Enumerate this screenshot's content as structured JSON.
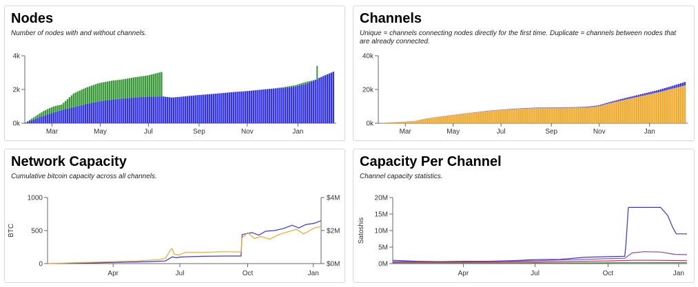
{
  "panels": {
    "nodes": {
      "title": "Nodes",
      "subtitle": "Number of nodes with and without channels."
    },
    "channels": {
      "title": "Channels",
      "subtitle": "Unique = channels connecting nodes directly for the first time. Duplicate = channels between nodes that are already connected."
    },
    "capacity": {
      "title": "Network Capacity",
      "subtitle": "Cumulative bitcoin capacity across all channels."
    },
    "perchannel": {
      "title": "Capacity Per Channel",
      "subtitle": "Channel capacity statistics."
    }
  },
  "colors": {
    "blue": "#3333ee",
    "green": "#3a9a3a",
    "orange": "#f5a623",
    "purple": "#8a4a9a",
    "card_border": "#d7d7d7"
  },
  "chart_data": [
    {
      "id": "nodes",
      "type": "bar",
      "stacked": true,
      "xlabel": "",
      "ylabel": "",
      "x_ticks": [
        "Mar",
        "May",
        "Jul",
        "Sep",
        "Nov",
        "Jan"
      ],
      "y_ticks": [
        "0k",
        "2k",
        "4k"
      ],
      "ylim": [
        0,
        4000
      ],
      "x_domain_months": [
        1.0,
        13.6
      ],
      "x_tick_months": [
        2.1,
        4.05,
        6.0,
        8.05,
        10.0,
        12.05
      ],
      "series": [
        {
          "color": "#3333ee",
          "points": [
            [
              1.0,
              0
            ],
            [
              1.3,
              180
            ],
            [
              1.8,
              450
            ],
            [
              2.5,
              780
            ],
            [
              3.0,
              950
            ],
            [
              3.5,
              1130
            ],
            [
              4.0,
              1290
            ],
            [
              4.5,
              1390
            ],
            [
              5.0,
              1460
            ],
            [
              5.5,
              1530
            ],
            [
              6.0,
              1570
            ],
            [
              6.6,
              1590
            ],
            [
              7.0,
              1520
            ],
            [
              7.5,
              1590
            ],
            [
              8.0,
              1660
            ],
            [
              8.5,
              1720
            ],
            [
              9.0,
              1780
            ],
            [
              9.5,
              1850
            ],
            [
              10.0,
              1900
            ],
            [
              10.5,
              1970
            ],
            [
              11.0,
              2040
            ],
            [
              11.5,
              2090
            ],
            [
              12.0,
              2170
            ],
            [
              12.5,
              2350
            ],
            [
              13.0,
              2700
            ],
            [
              13.6,
              3080
            ]
          ]
        },
        {
          "color": "#3a9a3a",
          "points": [
            [
              1.0,
              0
            ],
            [
              1.3,
              100
            ],
            [
              1.8,
              300
            ],
            [
              2.2,
              370
            ],
            [
              2.5,
              320
            ],
            [
              3.0,
              820
            ],
            [
              3.5,
              980
            ],
            [
              4.0,
              1080
            ],
            [
              4.5,
              1120
            ],
            [
              5.0,
              1140
            ],
            [
              5.5,
              1200
            ],
            [
              6.0,
              1260
            ],
            [
              6.6,
              1460
            ],
            [
              6.65,
              0
            ],
            [
              10.5,
              0
            ],
            [
              11.0,
              0
            ],
            [
              11.5,
              40
            ],
            [
              12.0,
              80
            ],
            [
              12.5,
              120
            ],
            [
              12.8,
              0
            ],
            [
              13.6,
              0
            ]
          ]
        }
      ],
      "spikes": [
        [
          12.8,
          3400
        ]
      ]
    },
    {
      "id": "channels",
      "type": "bar",
      "stacked": true,
      "xlabel": "",
      "ylabel": "",
      "x_ticks": [
        "Mar",
        "May",
        "Jul",
        "Sep",
        "Nov",
        "Jan"
      ],
      "y_ticks": [
        "0k",
        "20k",
        "40k"
      ],
      "ylim": [
        0,
        40000
      ],
      "x_domain_months": [
        1.0,
        13.6
      ],
      "x_tick_months": [
        2.1,
        4.05,
        6.0,
        8.05,
        10.0,
        12.05
      ],
      "series": [
        {
          "color": "#f5a623",
          "points": [
            [
              1.0,
              0
            ],
            [
              1.5,
              500
            ],
            [
              2.0,
              800
            ],
            [
              2.5,
              1300
            ],
            [
              3.0,
              2800
            ],
            [
              3.5,
              3800
            ],
            [
              4.0,
              4700
            ],
            [
              4.5,
              5600
            ],
            [
              5.0,
              6400
            ],
            [
              5.5,
              7200
            ],
            [
              6.0,
              7800
            ],
            [
              6.5,
              8300
            ],
            [
              7.0,
              8700
            ],
            [
              7.5,
              9000
            ],
            [
              8.0,
              9100
            ],
            [
              8.5,
              9100
            ],
            [
              9.0,
              9200
            ],
            [
              9.5,
              9300
            ],
            [
              10.0,
              10000
            ],
            [
              10.5,
              11900
            ],
            [
              11.0,
              13600
            ],
            [
              11.5,
              15200
            ],
            [
              12.0,
              16800
            ],
            [
              12.5,
              18400
            ],
            [
              13.0,
              20300
            ],
            [
              13.6,
              22500
            ]
          ]
        },
        {
          "color": "#3333ee",
          "points": [
            [
              1.0,
              0
            ],
            [
              3.0,
              60
            ],
            [
              5.0,
              150
            ],
            [
              7.0,
              240
            ],
            [
              9.0,
              300
            ],
            [
              10.0,
              500
            ],
            [
              11.0,
              900
            ],
            [
              12.0,
              1200
            ],
            [
              13.0,
              1600
            ],
            [
              13.6,
              2100
            ]
          ]
        }
      ]
    },
    {
      "id": "capacity",
      "type": "line",
      "xlabel": "",
      "ylabel": "BTC",
      "y2label": "",
      "x_ticks": [
        "Apr",
        "Jul",
        "Oct",
        "Jan"
      ],
      "y_ticks": [
        "0",
        "500",
        "1000"
      ],
      "y2_ticks": [
        "$0M",
        "$2M",
        "$4M"
      ],
      "ylim": [
        0,
        1000
      ],
      "y2lim": [
        0,
        4
      ],
      "x_domain_months": [
        1.0,
        13.3
      ],
      "x_tick_months": [
        3.95,
        6.95,
        10.0,
        12.95
      ],
      "series": [
        {
          "color": "#3333ee",
          "points": [
            [
              1.0,
              0
            ],
            [
              2.0,
              5
            ],
            [
              3.0,
              10
            ],
            [
              4.0,
              18
            ],
            [
              5.0,
              25
            ],
            [
              6.0,
              35
            ],
            [
              6.3,
              40
            ],
            [
              6.6,
              100
            ],
            [
              6.8,
              90
            ],
            [
              7.0,
              100
            ],
            [
              8.0,
              110
            ],
            [
              9.0,
              115
            ],
            [
              9.7,
              115
            ],
            [
              9.75,
              440
            ],
            [
              10.2,
              470
            ],
            [
              10.5,
              430
            ],
            [
              10.8,
              490
            ],
            [
              11.2,
              500
            ],
            [
              11.6,
              530
            ],
            [
              12.0,
              580
            ],
            [
              12.3,
              540
            ],
            [
              12.6,
              590
            ],
            [
              13.0,
              610
            ],
            [
              13.3,
              650
            ]
          ]
        },
        {
          "color": "#f5a623",
          "points": [
            [
              1.0,
              0
            ],
            [
              2.0,
              10
            ],
            [
              3.0,
              20
            ],
            [
              4.0,
              30
            ],
            [
              5.0,
              40
            ],
            [
              6.0,
              60
            ],
            [
              6.3,
              80
            ],
            [
              6.5,
              190
            ],
            [
              6.6,
              230
            ],
            [
              6.7,
              140
            ],
            [
              6.9,
              130
            ],
            [
              7.2,
              170
            ],
            [
              8.0,
              170
            ],
            [
              9.0,
              180
            ],
            [
              9.7,
              175
            ],
            [
              9.75,
              390
            ],
            [
              10.0,
              470
            ],
            [
              10.3,
              380
            ],
            [
              10.6,
              410
            ],
            [
              11.0,
              370
            ],
            [
              11.4,
              440
            ],
            [
              11.8,
              480
            ],
            [
              12.2,
              520
            ],
            [
              12.5,
              450
            ],
            [
              12.8,
              500
            ],
            [
              13.0,
              540
            ],
            [
              13.3,
              560
            ]
          ]
        }
      ]
    },
    {
      "id": "perchannel",
      "type": "line",
      "xlabel": "",
      "ylabel": "Satoshis",
      "x_ticks": [
        "Apr",
        "Jul",
        "Oct",
        "Jan"
      ],
      "y_ticks": [
        "0M",
        "5M",
        "10M",
        "15M",
        "20M"
      ],
      "ylim": [
        0,
        20000000
      ],
      "x_domain_months": [
        1.0,
        13.3
      ],
      "x_tick_months": [
        3.95,
        6.95,
        10.0,
        12.95
      ],
      "series": [
        {
          "color": "#3333ee",
          "points": [
            [
              1.0,
              1000000
            ],
            [
              2.0,
              700000
            ],
            [
              3.0,
              600000
            ],
            [
              4.0,
              700000
            ],
            [
              5.0,
              700000
            ],
            [
              6.0,
              900000
            ],
            [
              7.0,
              1200000
            ],
            [
              8.0,
              1300000
            ],
            [
              9.0,
              1900000
            ],
            [
              10.0,
              2100000
            ],
            [
              10.7,
              2200000
            ],
            [
              10.75,
              6000000
            ],
            [
              10.85,
              17000000
            ],
            [
              12.2,
              17000000
            ],
            [
              12.5,
              14500000
            ],
            [
              12.7,
              11000000
            ],
            [
              12.85,
              9000000
            ],
            [
              13.3,
              9000000
            ]
          ]
        },
        {
          "color": "#8a4a9a",
          "points": [
            [
              1.0,
              600000
            ],
            [
              3.0,
              500000
            ],
            [
              5.0,
              600000
            ],
            [
              7.0,
              900000
            ],
            [
              9.0,
              1300000
            ],
            [
              10.0,
              1500000
            ],
            [
              10.7,
              1600000
            ],
            [
              11.0,
              3200000
            ],
            [
              11.5,
              3600000
            ],
            [
              12.2,
              3500000
            ],
            [
              12.8,
              2800000
            ],
            [
              13.3,
              2700000
            ]
          ]
        },
        {
          "color": "#d81b60",
          "points": [
            [
              1.0,
              400000
            ],
            [
              4.0,
              400000
            ],
            [
              7.0,
              500000
            ],
            [
              10.0,
              800000
            ],
            [
              11.0,
              1000000
            ],
            [
              12.0,
              1000000
            ],
            [
              13.3,
              900000
            ]
          ]
        },
        {
          "color": "#3a9a3a",
          "points": [
            [
              1.0,
              100000
            ],
            [
              5.0,
              150000
            ],
            [
              9.0,
              200000
            ],
            [
              11.0,
              300000
            ],
            [
              13.3,
              300000
            ]
          ]
        }
      ]
    }
  ]
}
